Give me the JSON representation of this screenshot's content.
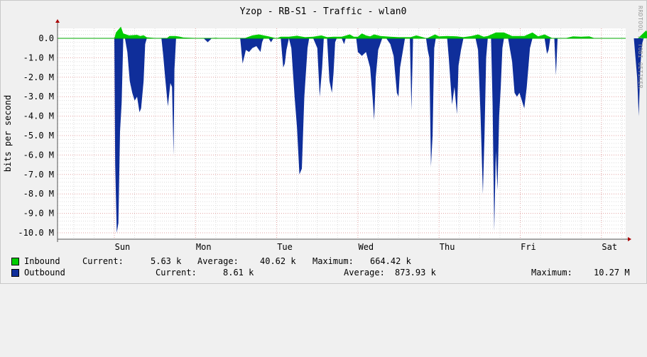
{
  "chart_data": {
    "type": "area",
    "title": "Yzop - RB-S1 - Traffic - wlan0",
    "ylabel": "bits per second",
    "ylim": [
      -10000000,
      700000
    ],
    "y_ticks": [
      {
        "value": 0,
        "label": "0.0"
      },
      {
        "value": -1000000,
        "label": "-1.0 M"
      },
      {
        "value": -2000000,
        "label": "-2.0 M"
      },
      {
        "value": -3000000,
        "label": "-3.0 M"
      },
      {
        "value": -4000000,
        "label": "-4.0 M"
      },
      {
        "value": -5000000,
        "label": "-5.0 M"
      },
      {
        "value": -6000000,
        "label": "-6.0 M"
      },
      {
        "value": -7000000,
        "label": "-7.0 M"
      },
      {
        "value": -8000000,
        "label": "-8.0 M"
      },
      {
        "value": -9000000,
        "label": "-9.0 M"
      },
      {
        "value": -10000000,
        "label": "-10.0 M"
      }
    ],
    "x_ticks": [
      "Sun",
      "Mon",
      "Tue",
      "Wed",
      "Thu",
      "Fri",
      "Sat"
    ],
    "x_range_days": [
      0,
      7
    ],
    "grid": true,
    "series": [
      {
        "name": "Inbound",
        "color": "#00cc00",
        "points": [
          [
            0.0,
            0
          ],
          [
            0.02,
            300000
          ],
          [
            0.05,
            450000
          ],
          [
            0.08,
            600000
          ],
          [
            0.11,
            250000
          ],
          [
            0.18,
            150000
          ],
          [
            0.28,
            180000
          ],
          [
            0.32,
            120000
          ],
          [
            0.36,
            160000
          ],
          [
            0.4,
            50000
          ],
          [
            0.55,
            0
          ],
          [
            0.65,
            20000
          ],
          [
            0.68,
            120000
          ],
          [
            0.75,
            120000
          ],
          [
            0.8,
            90000
          ],
          [
            0.85,
            40000
          ],
          [
            1.1,
            0
          ],
          [
            1.25,
            30000
          ],
          [
            1.35,
            0
          ],
          [
            1.6,
            0
          ],
          [
            1.7,
            150000
          ],
          [
            1.78,
            200000
          ],
          [
            1.9,
            100000
          ],
          [
            2.0,
            0
          ],
          [
            2.05,
            80000
          ],
          [
            2.15,
            80000
          ],
          [
            2.25,
            130000
          ],
          [
            2.35,
            60000
          ],
          [
            2.45,
            80000
          ],
          [
            2.55,
            150000
          ],
          [
            2.62,
            60000
          ],
          [
            2.7,
            80000
          ],
          [
            2.8,
            80000
          ],
          [
            2.9,
            200000
          ],
          [
            2.95,
            80000
          ],
          [
            3.0,
            80000
          ],
          [
            3.05,
            250000
          ],
          [
            3.1,
            150000
          ],
          [
            3.15,
            100000
          ],
          [
            3.2,
            200000
          ],
          [
            3.28,
            120000
          ],
          [
            3.4,
            80000
          ],
          [
            3.5,
            60000
          ],
          [
            3.65,
            60000
          ],
          [
            3.72,
            150000
          ],
          [
            3.85,
            0
          ],
          [
            3.95,
            200000
          ],
          [
            4.0,
            100000
          ],
          [
            4.1,
            120000
          ],
          [
            4.22,
            100000
          ],
          [
            4.3,
            60000
          ],
          [
            4.4,
            120000
          ],
          [
            4.48,
            200000
          ],
          [
            4.55,
            80000
          ],
          [
            4.6,
            120000
          ],
          [
            4.7,
            300000
          ],
          [
            4.8,
            300000
          ],
          [
            4.9,
            120000
          ],
          [
            5.05,
            120000
          ],
          [
            5.15,
            300000
          ],
          [
            5.22,
            100000
          ],
          [
            5.3,
            200000
          ],
          [
            5.4,
            0
          ],
          [
            5.55,
            0
          ],
          [
            5.65,
            100000
          ],
          [
            5.75,
            80000
          ],
          [
            5.85,
            100000
          ],
          [
            5.92,
            0
          ],
          [
            6.2,
            0
          ],
          [
            6.45,
            0
          ],
          [
            6.55,
            400000
          ],
          [
            6.62,
            0
          ],
          [
            7.0,
            0
          ]
        ]
      },
      {
        "name": "Outbound",
        "color": "#0f2e9a",
        "points": [
          [
            0.0,
            0
          ],
          [
            0.01,
            -6500000
          ],
          [
            0.03,
            -10000000
          ],
          [
            0.05,
            -9500000
          ],
          [
            0.07,
            -4800000
          ],
          [
            0.09,
            -3300000
          ],
          [
            0.11,
            0
          ],
          [
            0.13,
            0
          ],
          [
            0.16,
            -700000
          ],
          [
            0.19,
            -2200000
          ],
          [
            0.22,
            -2800000
          ],
          [
            0.25,
            -3200000
          ],
          [
            0.28,
            -3000000
          ],
          [
            0.31,
            -3800000
          ],
          [
            0.33,
            -3600000
          ],
          [
            0.36,
            -2200000
          ],
          [
            0.38,
            -300000
          ],
          [
            0.4,
            0
          ],
          [
            0.58,
            0
          ],
          [
            0.6,
            -800000
          ],
          [
            0.63,
            -2200000
          ],
          [
            0.66,
            -3500000
          ],
          [
            0.69,
            -2300000
          ],
          [
            0.71,
            -2500000
          ],
          [
            0.73,
            -6000000
          ],
          [
            0.74,
            -1600000
          ],
          [
            0.76,
            0
          ],
          [
            1.1,
            0
          ],
          [
            1.15,
            -200000
          ],
          [
            1.2,
            0
          ],
          [
            1.55,
            0
          ],
          [
            1.58,
            -1300000
          ],
          [
            1.62,
            -600000
          ],
          [
            1.66,
            -700000
          ],
          [
            1.7,
            -500000
          ],
          [
            1.75,
            -400000
          ],
          [
            1.8,
            -700000
          ],
          [
            1.82,
            -200000
          ],
          [
            1.84,
            0
          ],
          [
            1.9,
            0
          ],
          [
            1.93,
            -200000
          ],
          [
            1.96,
            0
          ],
          [
            2.05,
            0
          ],
          [
            2.08,
            -1500000
          ],
          [
            2.1,
            -1300000
          ],
          [
            2.12,
            -600000
          ],
          [
            2.15,
            0
          ],
          [
            2.18,
            -500000
          ],
          [
            2.22,
            -3000000
          ],
          [
            2.25,
            -4600000
          ],
          [
            2.28,
            -7000000
          ],
          [
            2.31,
            -6700000
          ],
          [
            2.34,
            -3000000
          ],
          [
            2.38,
            -500000
          ],
          [
            2.4,
            0
          ],
          [
            2.45,
            0
          ],
          [
            2.5,
            -500000
          ],
          [
            2.53,
            -3000000
          ],
          [
            2.56,
            -1500000
          ],
          [
            2.58,
            0
          ],
          [
            2.62,
            0
          ],
          [
            2.65,
            -2200000
          ],
          [
            2.68,
            -2800000
          ],
          [
            2.7,
            -1800000
          ],
          [
            2.72,
            -200000
          ],
          [
            2.74,
            0
          ],
          [
            2.8,
            0
          ],
          [
            2.83,
            -300000
          ],
          [
            2.85,
            0
          ],
          [
            2.98,
            0
          ],
          [
            3.0,
            -700000
          ],
          [
            3.05,
            -900000
          ],
          [
            3.1,
            -700000
          ],
          [
            3.15,
            -1500000
          ],
          [
            3.18,
            -3000000
          ],
          [
            3.2,
            -4200000
          ],
          [
            3.22,
            -2000000
          ],
          [
            3.25,
            -600000
          ],
          [
            3.3,
            0
          ],
          [
            3.35,
            0
          ],
          [
            3.4,
            -300000
          ],
          [
            3.44,
            -900000
          ],
          [
            3.48,
            -2800000
          ],
          [
            3.5,
            -3000000
          ],
          [
            3.52,
            -1500000
          ],
          [
            3.56,
            -500000
          ],
          [
            3.58,
            0
          ],
          [
            3.64,
            0
          ],
          [
            3.66,
            -3700000
          ],
          [
            3.68,
            0
          ],
          [
            3.84,
            0
          ],
          [
            3.86,
            -600000
          ],
          [
            3.88,
            -1000000
          ],
          [
            3.9,
            -6600000
          ],
          [
            3.92,
            -5000000
          ],
          [
            3.94,
            -500000
          ],
          [
            3.96,
            0
          ],
          [
            4.1,
            0
          ],
          [
            4.12,
            -1000000
          ],
          [
            4.14,
            -2200000
          ],
          [
            4.16,
            -3400000
          ],
          [
            4.19,
            -2500000
          ],
          [
            4.22,
            -3900000
          ],
          [
            4.24,
            -1400000
          ],
          [
            4.27,
            -600000
          ],
          [
            4.3,
            0
          ],
          [
            4.45,
            0
          ],
          [
            4.48,
            -600000
          ],
          [
            4.51,
            -3800000
          ],
          [
            4.54,
            -8000000
          ],
          [
            4.56,
            -5000000
          ],
          [
            4.58,
            -1000000
          ],
          [
            4.6,
            0
          ],
          [
            4.64,
            0
          ],
          [
            4.66,
            -3400000
          ],
          [
            4.68,
            -9900000
          ],
          [
            4.7,
            -5800000
          ],
          [
            4.72,
            -7800000
          ],
          [
            4.74,
            -4000000
          ],
          [
            4.76,
            -2500000
          ],
          [
            4.78,
            -500000
          ],
          [
            4.8,
            0
          ],
          [
            4.85,
            0
          ],
          [
            4.9,
            -1200000
          ],
          [
            4.93,
            -2800000
          ],
          [
            4.96,
            -3000000
          ],
          [
            4.99,
            -2800000
          ],
          [
            5.02,
            -3200000
          ],
          [
            5.05,
            -3600000
          ],
          [
            5.08,
            -2500000
          ],
          [
            5.12,
            -500000
          ],
          [
            5.15,
            0
          ],
          [
            5.3,
            0
          ],
          [
            5.33,
            -800000
          ],
          [
            5.35,
            -600000
          ],
          [
            5.37,
            0
          ],
          [
            5.42,
            0
          ],
          [
            5.44,
            -1900000
          ],
          [
            5.46,
            0
          ],
          [
            6.4,
            0
          ],
          [
            6.42,
            -1000000
          ],
          [
            6.44,
            -2000000
          ],
          [
            6.46,
            -4000000
          ],
          [
            6.48,
            -1400000
          ],
          [
            6.5,
            -300000
          ],
          [
            6.52,
            0
          ],
          [
            7.0,
            0
          ]
        ]
      }
    ],
    "legend": [
      {
        "name": "Inbound",
        "current_label": "Current:",
        "current": "5.63 k",
        "average_label": "Average:",
        "average": "40.62 k",
        "maximum_label": "Maximum:",
        "maximum": "664.42 k"
      },
      {
        "name": "Outbound",
        "current_label": "Current:",
        "current": "8.61 k",
        "average_label": "Average:",
        "average": "873.93 k",
        "maximum_label": "Maximum:",
        "maximum": "10.27 M"
      }
    ],
    "watermark": "RRDTOOL / TOBI OETIKER"
  }
}
